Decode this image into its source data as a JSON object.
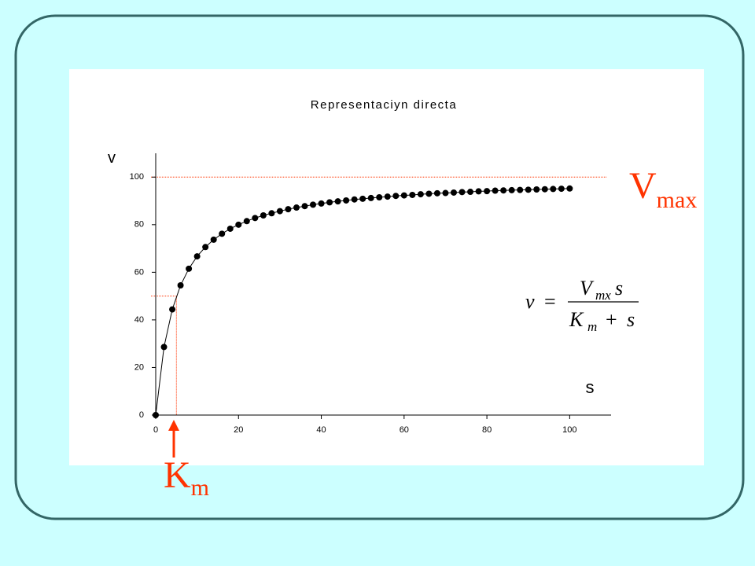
{
  "chart_data": {
    "type": "scatter-line",
    "title": "Representaciyn directa",
    "y_label": "v",
    "x_label": "s",
    "x": [
      0,
      2,
      4,
      6,
      8,
      10,
      12,
      14,
      16,
      18,
      20,
      22,
      24,
      26,
      28,
      30,
      32,
      34,
      36,
      38,
      40,
      42,
      44,
      46,
      48,
      50,
      52,
      54,
      56,
      58,
      60,
      62,
      64,
      66,
      68,
      70,
      72,
      74,
      76,
      78,
      80,
      82,
      84,
      86,
      88,
      90,
      92,
      94,
      96,
      98,
      100
    ],
    "series": [
      {
        "color": "#000000",
        "values": [
          0,
          28.6,
          44.4,
          54.5,
          61.5,
          66.7,
          70.6,
          73.7,
          76.2,
          78.3,
          80,
          81.5,
          82.8,
          83.9,
          84.8,
          85.7,
          86.5,
          87.2,
          87.8,
          88.4,
          88.9,
          89.4,
          89.8,
          90.2,
          90.6,
          90.9,
          91.2,
          91.5,
          91.8,
          92.1,
          92.3,
          92.5,
          92.8,
          93.0,
          93.2,
          93.3,
          93.5,
          93.7,
          93.8,
          94.0,
          94.1,
          94.3,
          94.4,
          94.5,
          94.6,
          94.7,
          94.8,
          94.9,
          95.0,
          95.1,
          95.2
        ]
      }
    ],
    "xlim": [
      0,
      110
    ],
    "ylim": [
      0,
      110
    ],
    "xticks": [
      0,
      20,
      40,
      60,
      80,
      100
    ],
    "yticks": [
      0,
      20,
      40,
      60,
      80,
      100
    ],
    "reference_lines": [
      {
        "axis": "y",
        "value": 100
      },
      {
        "axis": "y",
        "value": 50
      },
      {
        "axis": "x",
        "value": 5
      }
    ],
    "reference_color": "#ff3300",
    "annotations": {
      "vmax": {
        "main": "V",
        "sub": "max"
      },
      "km": {
        "main": "K",
        "sub": "m"
      }
    },
    "equation": {
      "lhs": "v",
      "eq": "=",
      "num_v": "V",
      "num_sub": "mx",
      "num_s": "s",
      "den_k": "K",
      "den_sub": "m",
      "den_plus": "+",
      "den_s": "s"
    }
  }
}
